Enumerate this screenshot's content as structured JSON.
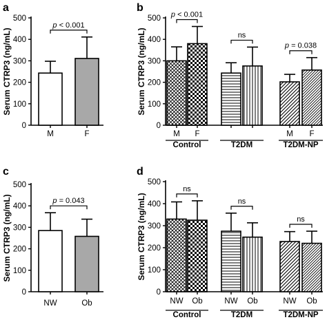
{
  "chart_data": [
    {
      "panel": "a",
      "type": "bar",
      "ylabel": "Serum CTRP3 (ng/mL)",
      "ylim": [
        0,
        500
      ],
      "yticks": [
        0,
        100,
        200,
        300,
        400,
        500
      ],
      "categories": [
        "M",
        "F"
      ],
      "values": [
        243,
        311
      ],
      "errors": [
        55,
        100
      ],
      "fills": [
        "white",
        "gray"
      ],
      "groups": [],
      "comparisons": [
        {
          "from": 0,
          "to": 1,
          "label_prefix": "p",
          "label_suffix": " < 0.001"
        }
      ]
    },
    {
      "panel": "b",
      "type": "bar",
      "ylabel": "Serum CTRP3 (ng/mL)",
      "ylim": [
        0,
        500
      ],
      "yticks": [
        0,
        100,
        200,
        300,
        400,
        500
      ],
      "categories": [
        "M",
        "F",
        "",
        "",
        "M",
        "F"
      ],
      "values": [
        300,
        380,
        243,
        276,
        202,
        257
      ],
      "errors": [
        65,
        80,
        48,
        88,
        35,
        58
      ],
      "fills": [
        "hatch-diag-cross",
        "checker",
        "hatch-horizontal",
        "hatch-vertical",
        "hatch-diag",
        "hatch-diag-fine"
      ],
      "groups": [
        {
          "label": "Control",
          "bars": [
            0,
            1
          ]
        },
        {
          "label": "T2DM",
          "bars": [
            2,
            3
          ]
        },
        {
          "label": "T2DM-NP",
          "bars": [
            4,
            5
          ]
        }
      ],
      "comparisons": [
        {
          "from": 0,
          "to": 1,
          "label_prefix": "p",
          "label_suffix": " < 0.001"
        },
        {
          "from": 2,
          "to": 3,
          "label_prefix": "",
          "label_suffix": "ns"
        },
        {
          "from": 4,
          "to": 5,
          "label_prefix": "p",
          "label_suffix": " = 0.038"
        }
      ]
    },
    {
      "panel": "c",
      "type": "bar",
      "ylabel": "Serum CTRP3 (ng/mL)",
      "ylim": [
        0,
        500
      ],
      "yticks": [
        0,
        100,
        200,
        300,
        400,
        500
      ],
      "categories": [
        "NW",
        "Ob"
      ],
      "values": [
        285,
        258
      ],
      "errors": [
        83,
        80
      ],
      "fills": [
        "white",
        "gray"
      ],
      "groups": [],
      "comparisons": [
        {
          "from": 0,
          "to": 1,
          "label_prefix": "p",
          "label_suffix": " = 0.043"
        }
      ]
    },
    {
      "panel": "d",
      "type": "bar",
      "ylabel": "Serum CTRP3 (ng/mL)",
      "ylim": [
        0,
        500
      ],
      "yticks": [
        0,
        100,
        200,
        300,
        400,
        500
      ],
      "categories": [
        "NW",
        "Ob",
        "NW",
        "Ob",
        "NW",
        "Ob"
      ],
      "values": [
        330,
        325,
        275,
        248,
        228,
        220
      ],
      "errors": [
        78,
        88,
        82,
        65,
        45,
        55
      ],
      "fills": [
        "hatch-diag-cross",
        "checker",
        "hatch-horizontal",
        "hatch-vertical",
        "hatch-diag",
        "hatch-diag-fine"
      ],
      "groups": [
        {
          "label": "Control",
          "bars": [
            0,
            1
          ]
        },
        {
          "label": "T2DM",
          "bars": [
            2,
            3
          ]
        },
        {
          "label": "T2DM-NP",
          "bars": [
            4,
            5
          ]
        }
      ],
      "comparisons": [
        {
          "from": 0,
          "to": 1,
          "label_prefix": "",
          "label_suffix": "ns"
        },
        {
          "from": 2,
          "to": 3,
          "label_prefix": "",
          "label_suffix": "ns"
        },
        {
          "from": 4,
          "to": 5,
          "label_prefix": "",
          "label_suffix": "ns"
        }
      ]
    }
  ]
}
